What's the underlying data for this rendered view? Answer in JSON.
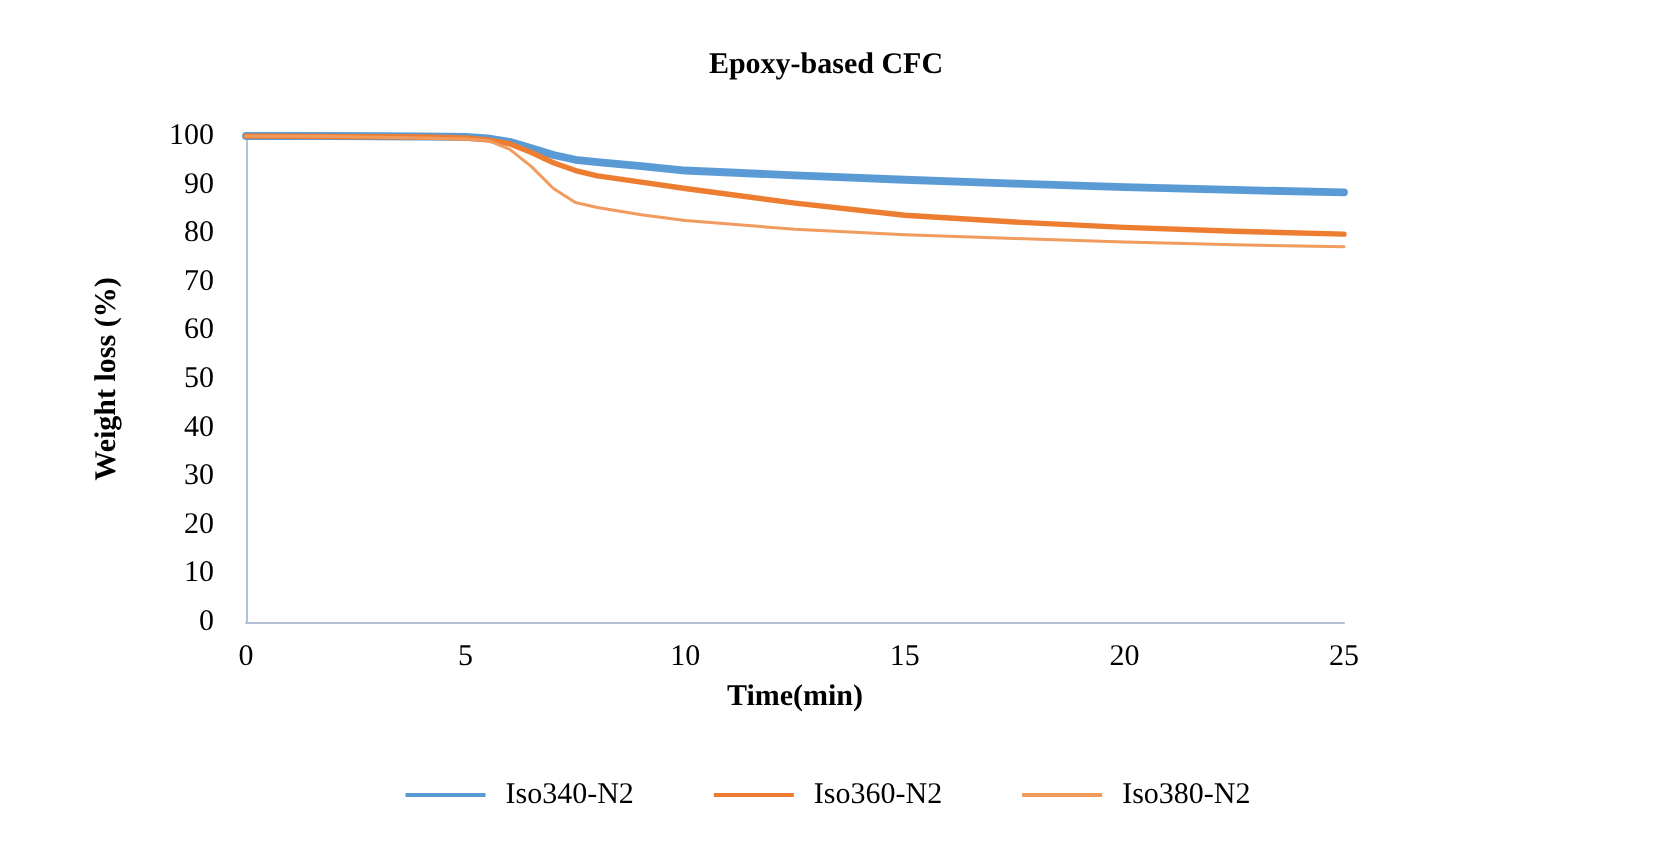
{
  "chart_data": {
    "type": "line",
    "title": "Epoxy-based CFC",
    "xlabel": "Time(min)",
    "ylabel": "Weight loss (%)",
    "xlim": [
      0,
      25
    ],
    "xticks": [
      0,
      5,
      10,
      15,
      20,
      25
    ],
    "ylim": [
      0,
      100
    ],
    "yticks": [
      0,
      10,
      20,
      30,
      40,
      50,
      60,
      70,
      80,
      90,
      100
    ],
    "grid": false,
    "legend": "bottom",
    "marker": "none",
    "line_style": "solid",
    "series": [
      {
        "name": "Iso340-N2",
        "color": "#5b9bd5",
        "x": [
          0,
          2,
          4,
          5,
          5.5,
          6,
          6.5,
          7,
          7.5,
          8,
          9,
          10,
          12.5,
          15,
          17.5,
          20,
          22.5,
          25
        ],
        "values": [
          100,
          100,
          99.9,
          99.8,
          99.5,
          98.8,
          97.5,
          96.1,
          95.1,
          94.6,
          93.8,
          92.9,
          91.9,
          91.0,
          90.2,
          89.5,
          88.9,
          88.4
        ]
      },
      {
        "name": "Iso360-N2",
        "color": "#ed7d31",
        "x": [
          0,
          2,
          4,
          5,
          5.5,
          6,
          6.5,
          7,
          7.5,
          8,
          9,
          10,
          12.5,
          15,
          17.5,
          20,
          22.5,
          25
        ],
        "values": [
          100,
          99.9,
          99.8,
          99.6,
          99.2,
          98.4,
          96.6,
          94.5,
          92.9,
          91.8,
          90.5,
          89.2,
          86.2,
          83.7,
          82.3,
          81.2,
          80.4,
          79.8
        ]
      },
      {
        "name": "Iso380-N2",
        "color": "#f29b5e",
        "x": [
          0,
          2,
          4,
          5,
          5.5,
          6,
          6.5,
          7,
          7.5,
          8,
          9,
          10,
          12.5,
          15,
          17.5,
          20,
          22.5,
          25
        ],
        "values": [
          100,
          99.9,
          99.6,
          99.4,
          99.1,
          97.3,
          93.7,
          89.2,
          86.3,
          85.3,
          83.8,
          82.6,
          80.8,
          79.7,
          78.9,
          78.2,
          77.6,
          77.2
        ]
      }
    ]
  }
}
